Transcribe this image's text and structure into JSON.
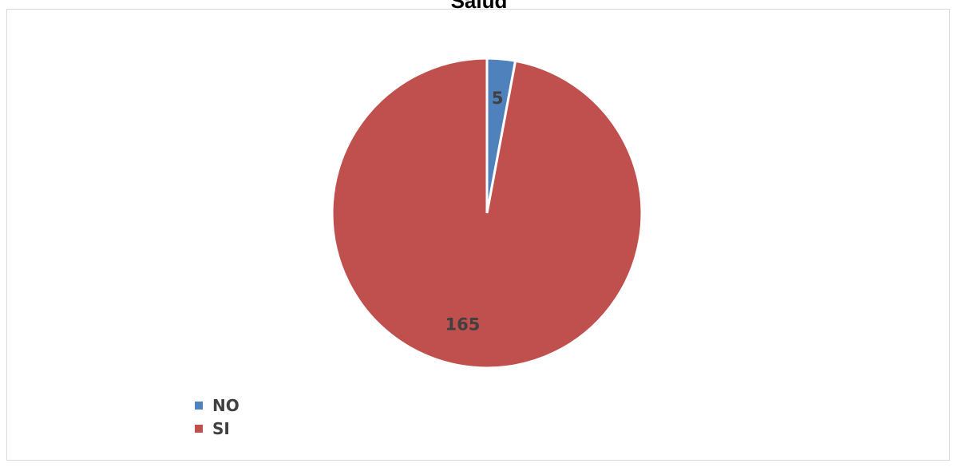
{
  "chart_data": {
    "type": "pie",
    "title": "Salud",
    "categories": [
      "NO",
      "SI"
    ],
    "values": [
      5,
      165
    ],
    "colors": [
      "#4f81bd",
      "#c0504d"
    ],
    "data_labels": [
      "5",
      "165"
    ],
    "legend": {
      "position": "bottom-left",
      "entries": [
        "NO",
        "SI"
      ]
    },
    "start_angle_deg": 0,
    "direction": "clockwise"
  }
}
